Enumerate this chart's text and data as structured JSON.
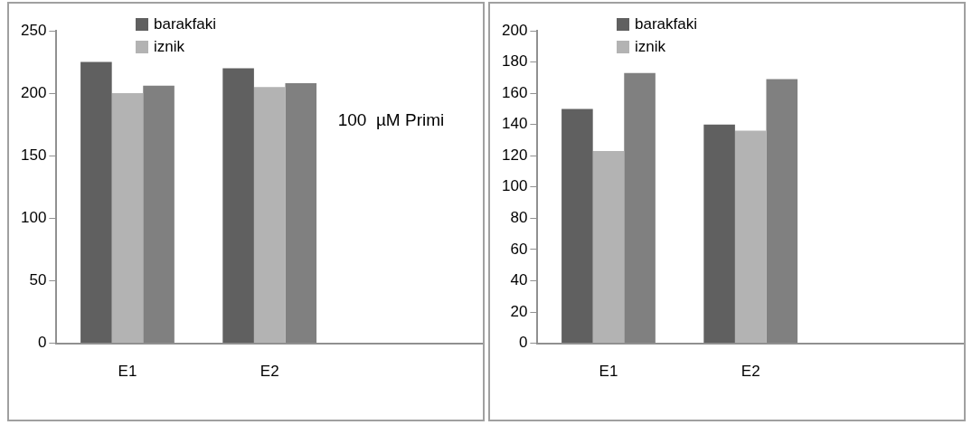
{
  "chart_data": [
    {
      "type": "bar",
      "categories": [
        "E1",
        "E2",
        null
      ],
      "series": [
        {
          "name": "barakfaki",
          "color": "#606060",
          "values": [
            225,
            220,
            null
          ]
        },
        {
          "name": "iznik",
          "color": "#b3b3b3",
          "values": [
            200,
            205,
            null
          ]
        },
        {
          "color": "#808080",
          "values": [
            206,
            208,
            null
          ]
        }
      ],
      "ylim": [
        0,
        250
      ],
      "yticks": [
        0,
        50,
        100,
        150,
        200,
        250
      ],
      "grid": false,
      "legend": "top left",
      "annotations": [
        "100  µM Primi"
      ]
    },
    {
      "type": "bar",
      "categories": [
        "E1",
        "E2",
        null
      ],
      "series": [
        {
          "name": "barakfaki",
          "color": "#606060",
          "values": [
            150,
            140,
            null
          ]
        },
        {
          "name": "iznik",
          "color": "#b3b3b3",
          "values": [
            123,
            136,
            null
          ]
        },
        {
          "color": "#808080",
          "values": [
            173,
            169,
            null
          ]
        }
      ],
      "ylim": [
        0,
        200
      ],
      "yticks": [
        0,
        20,
        40,
        60,
        80,
        100,
        120,
        140,
        160,
        180,
        200
      ],
      "grid": false,
      "legend": "top left"
    }
  ]
}
